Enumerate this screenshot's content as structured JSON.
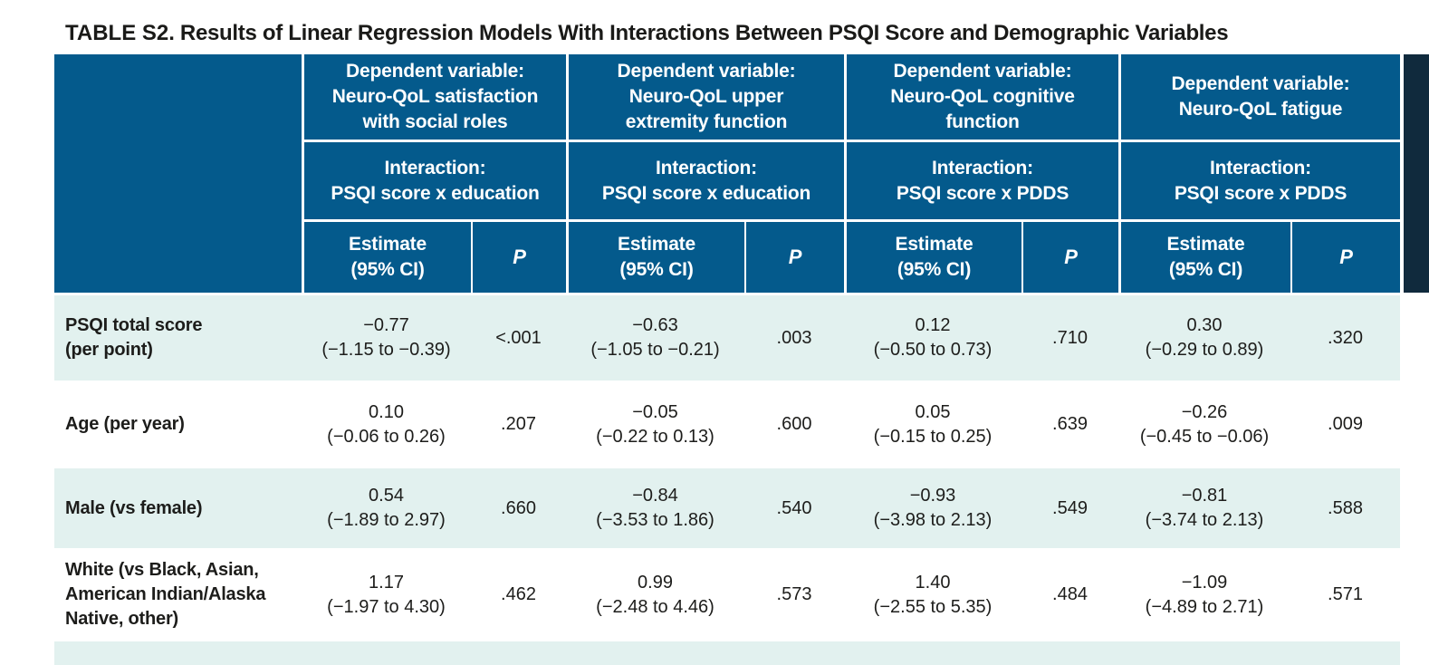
{
  "title": {
    "prefix": "TABLE S2.",
    "text": "Results of Linear Regression Models With Interactions Between PSQI Score and Demographic Variables"
  },
  "colors": {
    "header_bg": "#045a8c",
    "row_alt_bg": "#e2f1ef",
    "row_bg": "#ffffff",
    "header_text": "#ffffff",
    "body_text": "#1d1d1b",
    "edge_band": "#102a3d"
  },
  "header": {
    "groups": [
      {
        "dependent": "Dependent variable:\nNeuro-QoL satisfaction\nwith social roles",
        "interaction": "Interaction:\nPSQI score x education"
      },
      {
        "dependent": "Dependent variable:\nNeuro-QoL upper\nextremity function",
        "interaction": "Interaction:\nPSQI score x education"
      },
      {
        "dependent": "Dependent variable:\nNeuro-QoL cognitive\nfunction",
        "interaction": "Interaction:\nPSQI score x PDDS"
      },
      {
        "dependent": "Dependent variable:\nNeuro-QoL fatigue",
        "interaction": "Interaction:\nPSQI score x PDDS"
      }
    ],
    "estimate_label": "Estimate\n(95% CI)",
    "p_label": "P"
  },
  "rows": [
    {
      "label": "PSQI total score\n(per point)",
      "cells": [
        {
          "estimate": "−0.77",
          "ci": "(−1.15 to −0.39)",
          "p": "<.001"
        },
        {
          "estimate": "−0.63",
          "ci": "(−1.05 to −0.21)",
          "p": ".003"
        },
        {
          "estimate": "0.12",
          "ci": "(−0.50 to 0.73)",
          "p": ".710"
        },
        {
          "estimate": "0.30",
          "ci": "(−0.29 to 0.89)",
          "p": ".320"
        }
      ]
    },
    {
      "label": "Age (per year)",
      "cells": [
        {
          "estimate": "0.10",
          "ci": "(−0.06 to 0.26)",
          "p": ".207"
        },
        {
          "estimate": "−0.05",
          "ci": "(−0.22 to 0.13)",
          "p": ".600"
        },
        {
          "estimate": "0.05",
          "ci": "(−0.15 to 0.25)",
          "p": ".639"
        },
        {
          "estimate": "−0.26",
          "ci": "(−0.45 to −0.06)",
          "p": ".009"
        }
      ]
    },
    {
      "label": "Male (vs female)",
      "cells": [
        {
          "estimate": "0.54",
          "ci": "(−1.89 to 2.97)",
          "p": ".660"
        },
        {
          "estimate": "−0.84",
          "ci": "(−3.53 to 1.86)",
          "p": ".540"
        },
        {
          "estimate": "−0.93",
          "ci": "(−3.98 to 2.13)",
          "p": ".549"
        },
        {
          "estimate": "−0.81",
          "ci": "(−3.74 to 2.13)",
          "p": ".588"
        }
      ]
    },
    {
      "label": "White (vs Black, Asian,\nAmerican Indian/Alaska\nNative, other)",
      "cells": [
        {
          "estimate": "1.17",
          "ci": "(−1.97 to 4.30)",
          "p": ".462"
        },
        {
          "estimate": "0.99",
          "ci": "(−2.48 to 4.46)",
          "p": ".573"
        },
        {
          "estimate": "1.40",
          "ci": "(−2.55 to 5.35)",
          "p": ".484"
        },
        {
          "estimate": "−1.09",
          "ci": "(−4.89 to 2.71)",
          "p": ".571"
        }
      ]
    }
  ]
}
